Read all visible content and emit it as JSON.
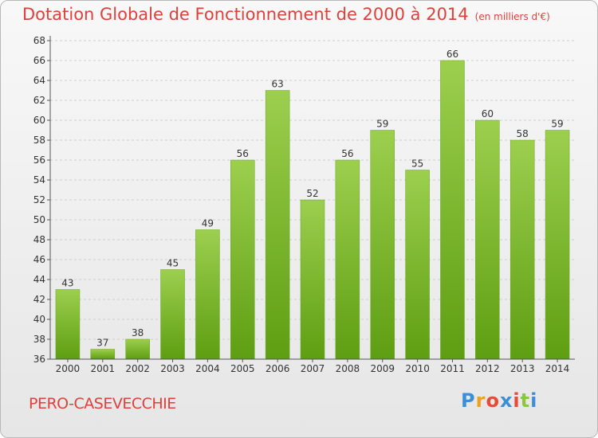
{
  "header": {
    "title": "Dotation Globale de Fonctionnement de 2000 à 2014",
    "subtitle": "(en milliers d'€)"
  },
  "footer": {
    "commune": "PERO-CASEVECCHIE",
    "logo_letters": [
      "P",
      "r",
      "o",
      "x",
      "i",
      "t",
      "i"
    ],
    "logo_colors": [
      "#3a8fd8",
      "#f0a020",
      "#e84a3a",
      "#3a8fd8",
      "#e84a3a",
      "#8cc63e",
      "#3a8fd8"
    ]
  },
  "colors": {
    "bar_top": "#9ccf4e",
    "bar_bottom": "#5e9e12",
    "axis": "#555555",
    "grid": "#cfcfcf",
    "title": "#e0403a"
  },
  "chart_data": {
    "type": "bar",
    "title": "Dotation Globale de Fonctionnement de 2000 à 2014",
    "subtitle": "(en milliers d'€)",
    "xlabel": "",
    "ylabel": "",
    "categories": [
      "2000",
      "2001",
      "2002",
      "2003",
      "2004",
      "2005",
      "2006",
      "2007",
      "2008",
      "2009",
      "2010",
      "2011",
      "2012",
      "2013",
      "2014"
    ],
    "values": [
      43,
      37,
      38,
      45,
      49,
      56,
      63,
      52,
      56,
      59,
      55,
      66,
      60,
      58,
      59
    ],
    "ylim": [
      36,
      68
    ],
    "yticks": [
      36,
      38,
      40,
      42,
      44,
      46,
      48,
      50,
      52,
      54,
      56,
      58,
      60,
      62,
      64,
      66,
      68
    ],
    "grid": true,
    "legend": "none"
  }
}
